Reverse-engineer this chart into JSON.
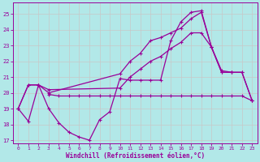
{
  "background_color": "#b2e8e8",
  "grid_color": "#c8c8c8",
  "line_color": "#990099",
  "xlabel": "Windchill (Refroidissement éolien,°C)",
  "ylim": [
    16.8,
    25.7
  ],
  "xlim": [
    -0.5,
    23.5
  ],
  "yticks": [
    17,
    18,
    19,
    20,
    21,
    22,
    23,
    24,
    25
  ],
  "xticks": [
    0,
    1,
    2,
    3,
    4,
    5,
    6,
    7,
    8,
    9,
    10,
    11,
    12,
    13,
    14,
    15,
    16,
    17,
    18,
    19,
    20,
    21,
    22,
    23
  ],
  "line_zigzag_x": [
    0,
    1,
    2,
    3,
    4,
    5,
    6,
    7,
    8,
    9,
    10,
    11,
    12,
    13,
    14,
    15,
    16,
    17,
    18,
    19,
    20,
    21
  ],
  "line_zigzag_y": [
    19.0,
    18.2,
    20.5,
    19.0,
    18.1,
    17.5,
    17.2,
    17.0,
    18.3,
    18.8,
    20.9,
    20.8,
    20.8,
    20.8,
    20.8,
    23.3,
    24.5,
    25.1,
    25.2,
    22.9,
    21.3,
    21.3
  ],
  "line_flat_x": [
    3,
    4,
    5,
    6,
    7,
    8,
    9,
    10,
    11,
    12,
    13,
    14,
    15,
    16,
    17,
    18,
    19,
    20,
    21,
    22,
    23
  ],
  "line_flat_y": [
    19.9,
    19.8,
    19.8,
    19.8,
    19.8,
    19.8,
    19.8,
    19.8,
    19.8,
    19.8,
    19.8,
    19.8,
    19.8,
    19.8,
    19.8,
    19.8,
    19.8,
    19.8,
    19.8,
    19.8,
    19.5
  ],
  "line_rise1_x": [
    0,
    1,
    2,
    3,
    10,
    11,
    12,
    13,
    14,
    15,
    16,
    17,
    18,
    19,
    20,
    21,
    22,
    23
  ],
  "line_rise1_y": [
    19.0,
    20.5,
    20.5,
    20.2,
    20.3,
    21.0,
    21.5,
    22.0,
    22.3,
    22.8,
    23.2,
    23.8,
    23.8,
    22.9,
    21.4,
    21.3,
    21.3,
    19.5
  ],
  "line_rise2_x": [
    0,
    1,
    2,
    3,
    10,
    11,
    12,
    13,
    14,
    15,
    16,
    17,
    18,
    19,
    20,
    21,
    22,
    23
  ],
  "line_rise2_y": [
    19.0,
    20.5,
    20.5,
    20.0,
    21.2,
    22.0,
    22.5,
    23.3,
    23.5,
    23.8,
    24.1,
    24.7,
    25.1,
    22.9,
    21.3,
    21.3,
    21.3,
    19.5
  ]
}
